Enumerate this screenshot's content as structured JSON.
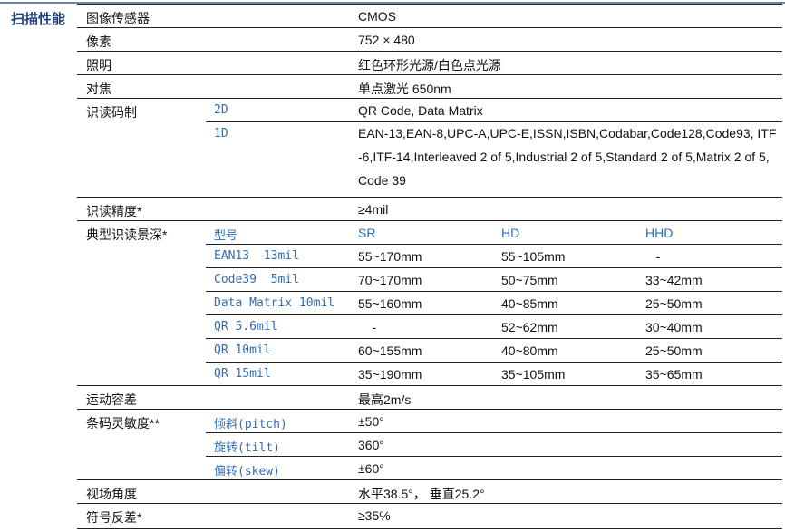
{
  "section_title": "扫描性能",
  "rows": [
    {
      "label": "图像传感器",
      "sub": "",
      "values": [
        "CMOS"
      ],
      "line": "full"
    },
    {
      "label": "像素",
      "sub": "",
      "values": [
        "752 × 480"
      ],
      "line": "full"
    },
    {
      "label": "照明",
      "sub": "",
      "values": [
        "红色环形光源/白色点光源"
      ],
      "line": "full"
    },
    {
      "label": "对焦",
      "sub": "",
      "values": [
        "单点激光 650nm"
      ],
      "line": "full"
    },
    {
      "label": "识读码制",
      "sub": "2D",
      "values": [
        "QR Code, Data Matrix"
      ],
      "line": "full"
    },
    {
      "label": "",
      "sub": "1D",
      "values": [
        "EAN-13,EAN-8,UPC-A,UPC-E,ISSN,ISBN,Codabar,Code128,Code93, ITF-6,ITF-14,Interleaved 2 of 5,Industrial 2 of 5,Standard 2 of 5,Matrix 2 of 5, Code 39"
      ],
      "line": "sub",
      "tall": true
    },
    {
      "label": "识读精度*",
      "sub": "",
      "values": [
        "≥4mil"
      ],
      "line": "full"
    },
    {
      "label": "典型识读景深*",
      "sub": "型号",
      "values": [
        "SR",
        "HD",
        "HHD"
      ],
      "line": "full",
      "header": true
    },
    {
      "label": "",
      "sub": "EAN13  13mil",
      "values": [
        "55~170mm",
        "55~105mm",
        "   -"
      ],
      "line": "sub"
    },
    {
      "label": "",
      "sub": "Code39  5mil",
      "values": [
        "70~170mm",
        "50~75mm",
        "33~42mm"
      ],
      "line": "sub"
    },
    {
      "label": "",
      "sub": "Data Matrix 10mil",
      "values": [
        "55~160mm",
        "40~85mm",
        "25~50mm"
      ],
      "line": "sub"
    },
    {
      "label": "",
      "sub": "QR 5.6mil",
      "values": [
        "    -",
        "52~62mm",
        "30~40mm"
      ],
      "line": "sub"
    },
    {
      "label": "",
      "sub": "QR 10mil",
      "values": [
        "60~155mm",
        "40~80mm",
        "25~50mm"
      ],
      "line": "sub"
    },
    {
      "label": "",
      "sub": "QR 15mil",
      "values": [
        "35~190mm",
        "35~105mm",
        "35~65mm"
      ],
      "line": "sub"
    },
    {
      "label": "运动容差",
      "sub": "",
      "values": [
        "最高2m/s"
      ],
      "line": "full"
    },
    {
      "label": "条码灵敏度**",
      "sub": "倾斜(pitch)",
      "values": [
        "±50°"
      ],
      "line": "full"
    },
    {
      "label": "",
      "sub": "旋转(tilt)",
      "values": [
        "360°"
      ],
      "line": "sub"
    },
    {
      "label": "",
      "sub": "偏转(skew)",
      "values": [
        "±60°"
      ],
      "line": "sub"
    },
    {
      "label": "视场角度",
      "sub": "",
      "values": [
        "水平38.5°， 垂直25.2°"
      ],
      "line": "full"
    },
    {
      "label": "符号反差*",
      "sub": "",
      "values": [
        "≥35%"
      ],
      "line": "full"
    }
  ]
}
